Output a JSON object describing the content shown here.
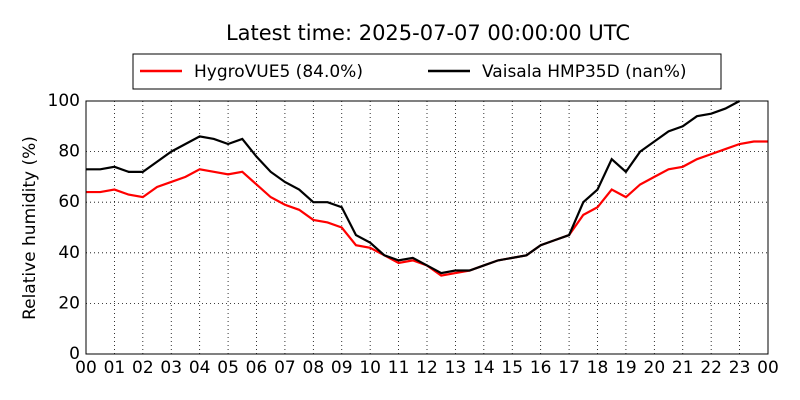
{
  "chart_data": {
    "type": "line",
    "title": "Latest time: 2025-07-07 00:00:00 UTC",
    "y_label": "Relative humidity (%)",
    "x": [
      0,
      0.5,
      1,
      1.5,
      2,
      2.5,
      3,
      3.5,
      4,
      4.5,
      5,
      5.5,
      6,
      6.5,
      7,
      7.5,
      8,
      8.5,
      9,
      9.5,
      10,
      10.5,
      11,
      11.5,
      12,
      12.5,
      13,
      13.5,
      14,
      14.5,
      15,
      15.5,
      16,
      16.5,
      17,
      17.5,
      18,
      18.5,
      19,
      19.5,
      20,
      20.5,
      21,
      21.5,
      22,
      22.5,
      23,
      23.5,
      24
    ],
    "series": [
      {
        "name": "HygroVUE5 (84.0%)",
        "color": "#ff0000",
        "values": [
          64,
          64,
          65,
          63,
          62,
          66,
          68,
          70,
          73,
          72,
          71,
          72,
          67,
          62,
          59,
          57,
          53,
          52,
          50,
          43,
          42,
          39,
          36,
          37,
          35,
          31,
          32,
          33,
          35,
          37,
          38,
          39,
          43,
          45,
          47,
          55,
          58,
          65,
          62,
          67,
          70,
          73,
          74,
          77,
          79,
          81,
          83,
          84,
          84
        ]
      },
      {
        "name": "Vaisala HMP35D (nan%)",
        "color": "#000000",
        "values": [
          73,
          73,
          74,
          72,
          72,
          76,
          80,
          83,
          86,
          85,
          83,
          85,
          78,
          72,
          68,
          65,
          60,
          60,
          58,
          47,
          44,
          39,
          37,
          38,
          35,
          32,
          33,
          33,
          35,
          37,
          38,
          39,
          43,
          45,
          47,
          60,
          65,
          77,
          72,
          80,
          84,
          88,
          90,
          94,
          95,
          97,
          100,
          null,
          null
        ]
      }
    ],
    "xlim": [
      0,
      24
    ],
    "xticks": [
      {
        "value": 0,
        "label": "00"
      },
      {
        "value": 1,
        "label": "01"
      },
      {
        "value": 2,
        "label": "02"
      },
      {
        "value": 3,
        "label": "03"
      },
      {
        "value": 4,
        "label": "04"
      },
      {
        "value": 5,
        "label": "05"
      },
      {
        "value": 6,
        "label": "06"
      },
      {
        "value": 7,
        "label": "07"
      },
      {
        "value": 8,
        "label": "08"
      },
      {
        "value": 9,
        "label": "09"
      },
      {
        "value": 10,
        "label": "10"
      },
      {
        "value": 11,
        "label": "11"
      },
      {
        "value": 12,
        "label": "12"
      },
      {
        "value": 13,
        "label": "13"
      },
      {
        "value": 14,
        "label": "14"
      },
      {
        "value": 15,
        "label": "15"
      },
      {
        "value": 16,
        "label": "16"
      },
      {
        "value": 17,
        "label": "17"
      },
      {
        "value": 18,
        "label": "18"
      },
      {
        "value": 19,
        "label": "19"
      },
      {
        "value": 20,
        "label": "20"
      },
      {
        "value": 21,
        "label": "21"
      },
      {
        "value": 22,
        "label": "22"
      },
      {
        "value": 23,
        "label": "23"
      },
      {
        "value": 24,
        "label": "00"
      }
    ],
    "ylim": [
      0,
      100
    ],
    "yticks": [
      0,
      20,
      40,
      60,
      80,
      100
    ],
    "grid": true
  }
}
